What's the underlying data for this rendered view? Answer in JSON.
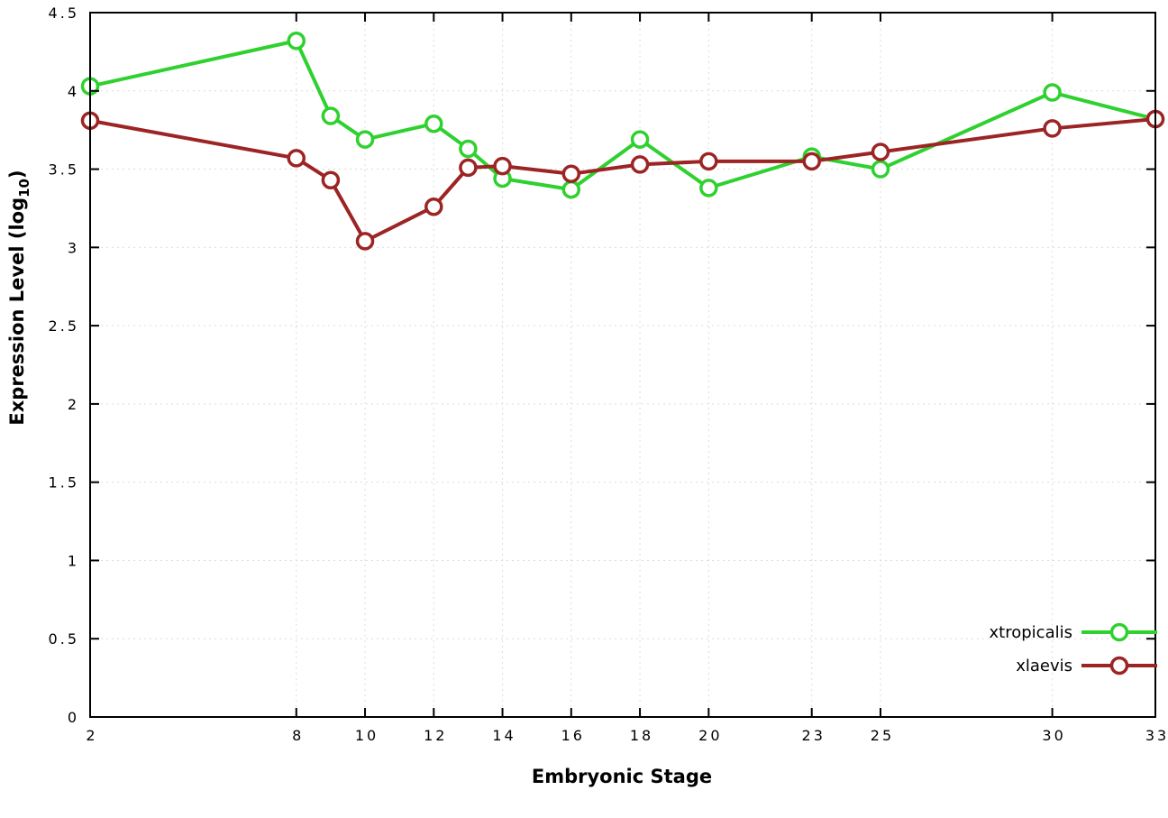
{
  "chart_data": {
    "type": "line",
    "x": [
      2,
      8,
      9,
      10,
      12,
      13,
      14,
      16,
      18,
      20,
      23,
      25,
      30,
      33
    ],
    "series": [
      {
        "name": "xtropicalis",
        "color": "#2ed12e",
        "values": [
          4.03,
          4.32,
          3.84,
          3.69,
          3.79,
          3.63,
          3.44,
          3.37,
          3.69,
          3.38,
          3.58,
          3.5,
          3.99,
          3.82
        ]
      },
      {
        "name": "xlaevis",
        "color": "#9c2424",
        "values": [
          3.81,
          3.57,
          3.43,
          3.04,
          3.26,
          3.51,
          3.52,
          3.47,
          3.53,
          3.55,
          3.55,
          3.61,
          3.76,
          3.82
        ]
      }
    ],
    "xlabel": "Embryonic Stage",
    "ylabel": {
      "prefix": "Expression Level (log",
      "sub": "10",
      "suffix": ")"
    },
    "xlim": [
      2,
      33
    ],
    "ylim": [
      0,
      4.5
    ],
    "xticks": [
      2,
      8,
      10,
      12,
      14,
      16,
      18,
      20,
      23,
      25,
      30,
      33
    ],
    "xtick_labels": [
      "2",
      "8",
      "10",
      "12",
      "14",
      "16",
      "18",
      "20",
      "23",
      "25",
      "30",
      "33"
    ],
    "yticks": [
      0,
      0.5,
      1,
      1.5,
      2,
      2.5,
      3,
      3.5,
      4,
      4.5
    ],
    "ytick_labels": [
      "0",
      "0.5",
      "1",
      "1.5",
      "2",
      "2.5",
      "3",
      "3.5",
      "4",
      "4.5"
    ],
    "grid": true,
    "legend_position": "bottom-right",
    "colors": {
      "axis": "#000000",
      "grid": "#dcdcdc",
      "background": "#ffffff",
      "marker_fill": "#ffffff"
    }
  }
}
